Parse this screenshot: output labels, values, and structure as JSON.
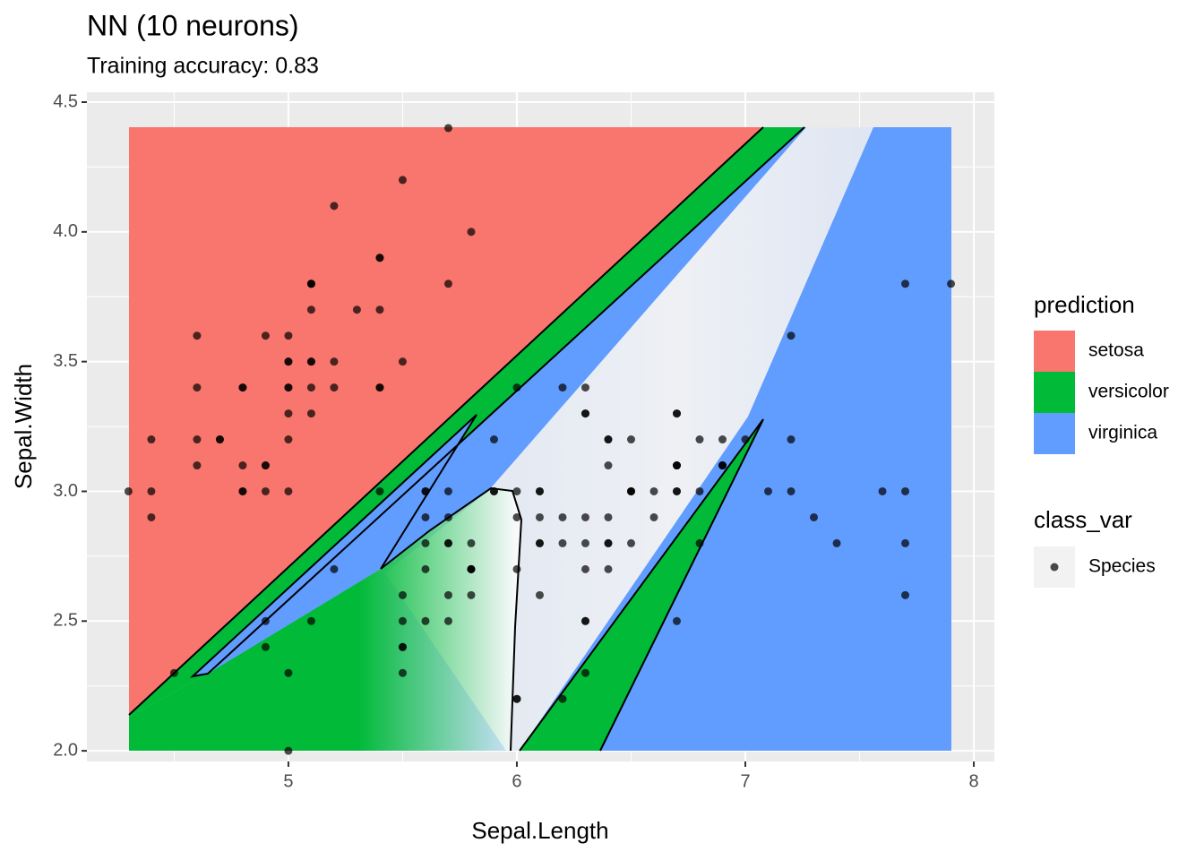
{
  "chart_data": {
    "type": "scatter",
    "title": "NN (10 neurons)",
    "subtitle": "Training accuracy: 0.83",
    "x_label": "Sepal.Length",
    "y_label": "Sepal.Width",
    "xlim": [
      4.118,
      8.09
    ],
    "ylim": [
      1.959,
      4.538
    ],
    "xticks": [
      5,
      6,
      7,
      8
    ],
    "yticks": [
      {
        "value": 2,
        "label": "2.0"
      },
      2.5,
      {
        "value": 3,
        "label": "3.0"
      },
      3.5,
      {
        "value": 4,
        "label": "4.0"
      },
      4.5
    ],
    "grid": true,
    "fill_legend": {
      "title": "prediction",
      "items": [
        {
          "name": "setosa",
          "color": "#f8766d"
        },
        {
          "name": "versicolor",
          "color": "#00ba38"
        },
        {
          "name": "virginica",
          "color": "#619cff"
        }
      ]
    },
    "point_legend_title": "class_var",
    "series": [
      {
        "name": "Species",
        "color": "#000000",
        "x": [
          5.1,
          4.9,
          4.7,
          4.6,
          5.0,
          5.4,
          4.6,
          5.0,
          4.4,
          4.9,
          5.4,
          4.8,
          4.8,
          4.3,
          5.8,
          5.7,
          5.4,
          5.1,
          5.7,
          5.1,
          5.4,
          5.1,
          4.6,
          5.1,
          4.8,
          5.0,
          5.0,
          5.2,
          5.2,
          4.7,
          4.8,
          5.4,
          5.2,
          5.5,
          4.9,
          5.0,
          5.5,
          4.9,
          4.4,
          5.1,
          5.0,
          4.5,
          4.4,
          5.0,
          5.1,
          4.8,
          5.1,
          4.6,
          5.3,
          5.0,
          7.0,
          6.4,
          6.9,
          5.5,
          6.5,
          5.7,
          6.3,
          4.9,
          6.6,
          5.2,
          5.0,
          5.9,
          6.0,
          6.1,
          5.6,
          6.7,
          5.6,
          5.8,
          6.2,
          5.6,
          5.9,
          6.1,
          6.3,
          6.1,
          6.4,
          6.6,
          6.8,
          6.7,
          6.0,
          5.7,
          5.5,
          5.5,
          5.8,
          6.0,
          5.4,
          6.0,
          6.7,
          6.3,
          5.6,
          5.5,
          5.5,
          6.1,
          5.8,
          5.0,
          5.6,
          5.7,
          5.7,
          6.2,
          5.1,
          5.7,
          6.3,
          5.8,
          7.1,
          6.3,
          6.5,
          7.6,
          4.9,
          7.3,
          6.7,
          7.2,
          6.5,
          6.4,
          6.8,
          5.7,
          5.8,
          6.4,
          6.5,
          7.7,
          7.7,
          6.0,
          6.9,
          5.6,
          7.7,
          6.3,
          6.7,
          7.2,
          6.2,
          6.1,
          6.4,
          7.2,
          7.4,
          7.9,
          6.4,
          6.3,
          6.1,
          7.7,
          6.3,
          6.4,
          6.0,
          6.9,
          6.7,
          6.9,
          5.8,
          6.8,
          6.7,
          6.7,
          6.3,
          6.5,
          6.2,
          5.9
        ],
        "values": [
          3.5,
          3.0,
          3.2,
          3.1,
          3.6,
          3.9,
          3.4,
          3.4,
          2.9,
          3.1,
          3.7,
          3.4,
          3.0,
          3.0,
          4.0,
          4.4,
          3.9,
          3.5,
          3.8,
          3.8,
          3.4,
          3.7,
          3.6,
          3.3,
          3.4,
          3.0,
          3.4,
          3.5,
          3.4,
          3.2,
          3.1,
          3.4,
          4.1,
          4.2,
          3.1,
          3.2,
          3.5,
          3.6,
          3.0,
          3.4,
          3.5,
          2.3,
          3.2,
          3.5,
          3.8,
          3.0,
          3.8,
          3.2,
          3.7,
          3.3,
          3.2,
          3.2,
          3.1,
          2.3,
          2.8,
          2.8,
          3.3,
          2.4,
          2.9,
          2.7,
          2.0,
          3.0,
          2.2,
          2.9,
          2.9,
          3.1,
          3.0,
          2.7,
          2.2,
          2.5,
          3.2,
          2.8,
          2.5,
          2.8,
          2.9,
          3.0,
          2.8,
          3.0,
          2.9,
          2.6,
          2.4,
          2.4,
          2.7,
          2.7,
          3.0,
          3.4,
          3.1,
          2.3,
          3.0,
          2.5,
          2.6,
          3.0,
          2.6,
          2.3,
          2.7,
          3.0,
          2.9,
          2.9,
          2.5,
          2.8,
          3.3,
          2.7,
          3.0,
          2.9,
          3.0,
          3.0,
          2.5,
          2.9,
          2.5,
          3.6,
          3.2,
          2.7,
          3.0,
          2.5,
          2.8,
          3.2,
          3.0,
          3.8,
          2.6,
          2.2,
          3.2,
          2.8,
          2.8,
          2.7,
          3.3,
          3.2,
          2.8,
          3.0,
          2.8,
          3.0,
          2.8,
          3.8,
          2.8,
          2.8,
          2.6,
          3.0,
          3.4,
          3.1,
          3.0,
          3.1,
          3.1,
          3.1,
          2.7,
          3.2,
          3.3,
          3.0,
          2.5,
          3.0,
          3.4,
          3.0
        ]
      }
    ]
  }
}
